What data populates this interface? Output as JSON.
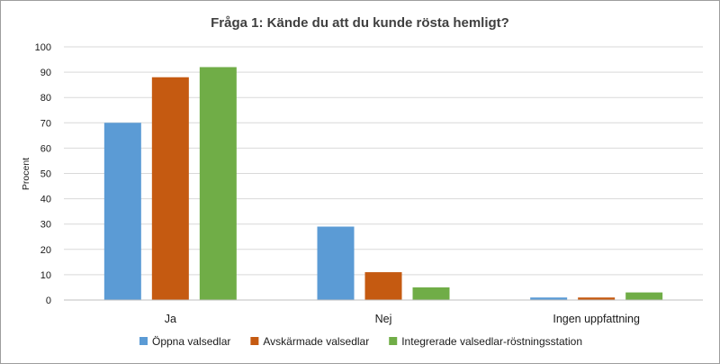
{
  "chart_data": {
    "type": "bar",
    "title": "Fråga 1:  Kände du att du kunde rösta hemligt?",
    "xlabel": "",
    "ylabel": "Procent",
    "ylim": [
      0,
      100
    ],
    "yticks": [
      0,
      10,
      20,
      30,
      40,
      50,
      60,
      70,
      80,
      90,
      100
    ],
    "grid": true,
    "legend_position": "bottom",
    "categories": [
      "Ja",
      "Nej",
      "Ingen uppfattning"
    ],
    "series": [
      {
        "name": "Öppna valsedlar",
        "color": "#5b9bd5",
        "values": [
          70,
          29,
          1
        ]
      },
      {
        "name": "Avskärmade valsedlar",
        "color": "#c55a11",
        "values": [
          88,
          11,
          1
        ]
      },
      {
        "name": "Integrerade valsedlar-röstningsstation",
        "color": "#70ad47",
        "values": [
          92,
          5,
          3
        ]
      }
    ]
  }
}
